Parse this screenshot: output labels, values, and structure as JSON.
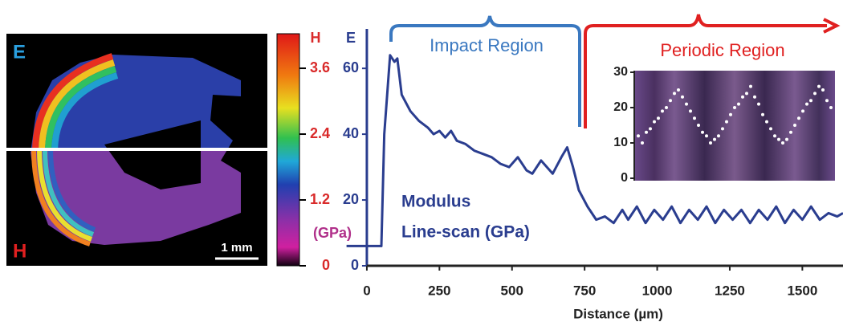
{
  "figure_map": {
    "top_label": "E",
    "bottom_label": "H",
    "scale_bar": "1 mm"
  },
  "colorbar": {
    "title": "H",
    "unit": "(GPa)",
    "hlim": [
      0,
      4.23
    ],
    "hticks": [
      0,
      1.2,
      2.4,
      3.6
    ],
    "color": "#d92a2a"
  },
  "chart_data": [
    {
      "type": "line",
      "y_label": "E",
      "x_label": "Distance (µm)",
      "annotations": {
        "impact": "Impact Region",
        "periodic": "Periodic Region",
        "series_label": [
          "Modulus",
          "Line-scan (GPa)"
        ]
      },
      "x": [
        -70,
        50,
        60,
        80,
        95,
        105,
        120,
        150,
        180,
        210,
        230,
        250,
        270,
        290,
        310,
        340,
        370,
        400,
        430,
        460,
        490,
        520,
        550,
        570,
        600,
        640,
        670,
        690,
        710,
        730,
        760,
        790,
        820,
        850,
        880,
        900,
        930,
        960,
        990,
        1020,
        1050,
        1080,
        1110,
        1140,
        1170,
        1200,
        1230,
        1260,
        1290,
        1320,
        1350,
        1380,
        1410,
        1440,
        1470,
        1500,
        1530,
        1560,
        1590,
        1620,
        1640
      ],
      "series": [
        {
          "color": "#2a3d8f",
          "values": [
            6,
            6,
            40,
            64,
            62,
            63,
            52,
            47,
            44,
            42,
            40,
            41,
            39,
            41,
            38,
            37,
            35,
            34,
            33,
            31,
            30,
            33,
            29,
            28,
            32,
            28,
            33,
            36,
            30,
            23,
            18,
            14,
            15,
            13,
            17,
            14,
            18,
            13,
            17,
            14,
            18,
            13,
            17,
            14,
            18,
            13,
            17,
            14,
            17,
            13,
            17,
            14,
            18,
            13,
            17,
            14,
            18,
            14,
            16,
            15,
            16
          ]
        }
      ],
      "xlim": [
        -80,
        1640
      ],
      "xticks": [
        0,
        250,
        500,
        750,
        1000,
        1250,
        1500
      ],
      "ylim": [
        0,
        72
      ],
      "yticks": [
        0,
        20,
        40,
        60
      ]
    },
    {
      "type": "scatter",
      "x": [
        2,
        4,
        6,
        8,
        10,
        12,
        14,
        16,
        18,
        20,
        22,
        24,
        26,
        28,
        30,
        32,
        34,
        36,
        38,
        40,
        42,
        44,
        46,
        48,
        50,
        52,
        54,
        56,
        58,
        60,
        62,
        64,
        66,
        68,
        70,
        72,
        74,
        76,
        78,
        80,
        82,
        84,
        86,
        88,
        90,
        92,
        94,
        96,
        98
      ],
      "series": [
        {
          "color": "#ffffff",
          "values": [
            12,
            10,
            13,
            14,
            16,
            17,
            19,
            20,
            22,
            24,
            25,
            23,
            21,
            19,
            17,
            15,
            13,
            12,
            10,
            11,
            12,
            14,
            16,
            18,
            20,
            21,
            23,
            24,
            26,
            23,
            21,
            18,
            16,
            14,
            12,
            11,
            10,
            11,
            13,
            15,
            17,
            19,
            21,
            22,
            24,
            26,
            25,
            22,
            20
          ]
        }
      ],
      "xlim": [
        0,
        100
      ],
      "ylim": [
        0,
        30
      ],
      "yticks": [
        0,
        10,
        20,
        30
      ]
    }
  ]
}
